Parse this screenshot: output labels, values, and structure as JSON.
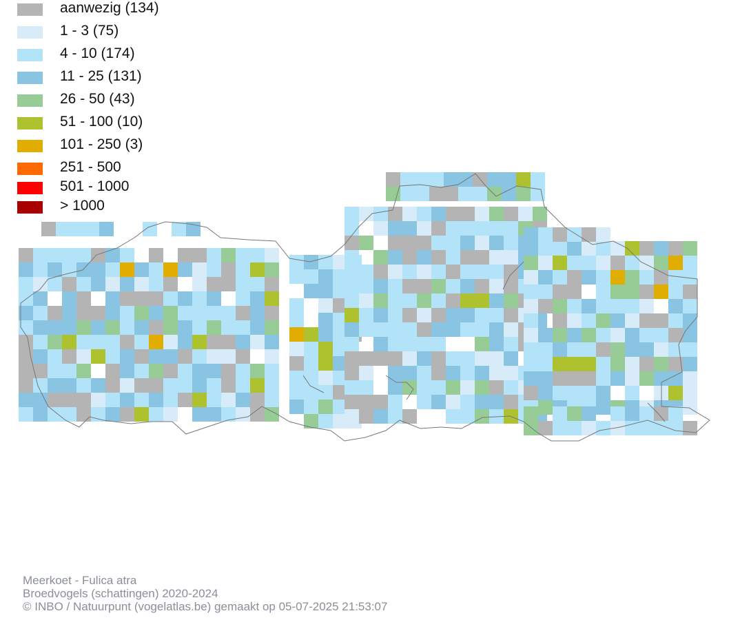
{
  "legend": {
    "items": [
      {
        "label": "aanwezig (134)",
        "color": "#b4b4b4"
      },
      {
        "label": "1 - 3 (75)",
        "color": "#d7ecf8"
      },
      {
        "label": "4 - 10 (174)",
        "color": "#b2e3f9"
      },
      {
        "label": "11 - 25 (131)",
        "color": "#89c4e3"
      },
      {
        "label": "26 - 50 (43)",
        "color": "#98cc96"
      },
      {
        "label": "51 - 100 (10)",
        "color": "#aec22f"
      },
      {
        "label": "101 - 250 (3)",
        "color": "#e0ad00"
      },
      {
        "label": "251 - 500",
        "color": "#ff6a00"
      },
      {
        "label": "501 - 1000",
        "color": "#ff0000"
      },
      {
        "label": "> 1000",
        "color": "#a80000"
      }
    ]
  },
  "footer": {
    "species": "Meerkoet - Fulica atra",
    "dataset": "Broedvogels (schattingen) 2020-2024",
    "credit": "© INBO / Natuurpunt (vogelatlas.be) gemaakt op 05-07-2025 21:53:07"
  },
  "colors": {
    "background": "#ffffff",
    "border": "#777777",
    "footer_text": "#8a8f98"
  }
}
